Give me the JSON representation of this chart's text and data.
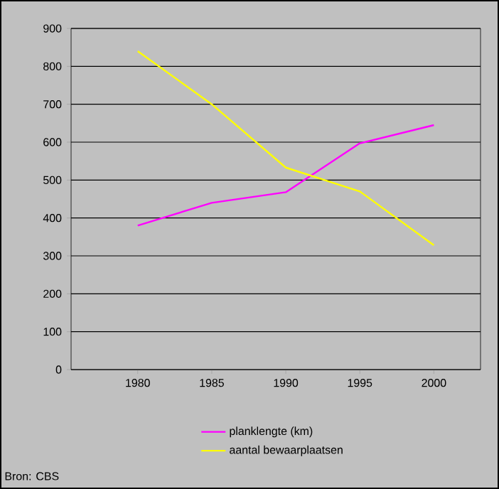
{
  "chart_data": {
    "type": "line",
    "categories": [
      "1980",
      "1985",
      "1990",
      "1995",
      "2000"
    ],
    "series": [
      {
        "name": "planklengte (km)",
        "color": "#ff00ff",
        "values": [
          380,
          440,
          468,
          597,
          645
        ]
      },
      {
        "name": "aantal bewaarplaatsen",
        "color": "#ffff00",
        "values": [
          840,
          700,
          533,
          470,
          328
        ]
      }
    ],
    "ylim": [
      0,
      900
    ],
    "yticks": [
      0,
      100,
      200,
      300,
      400,
      500,
      600,
      700,
      800,
      900
    ],
    "grid": "y",
    "legend": "bottom",
    "marker": "none",
    "line_style": "solid",
    "annotations": [
      "Bron: CBS"
    ]
  }
}
